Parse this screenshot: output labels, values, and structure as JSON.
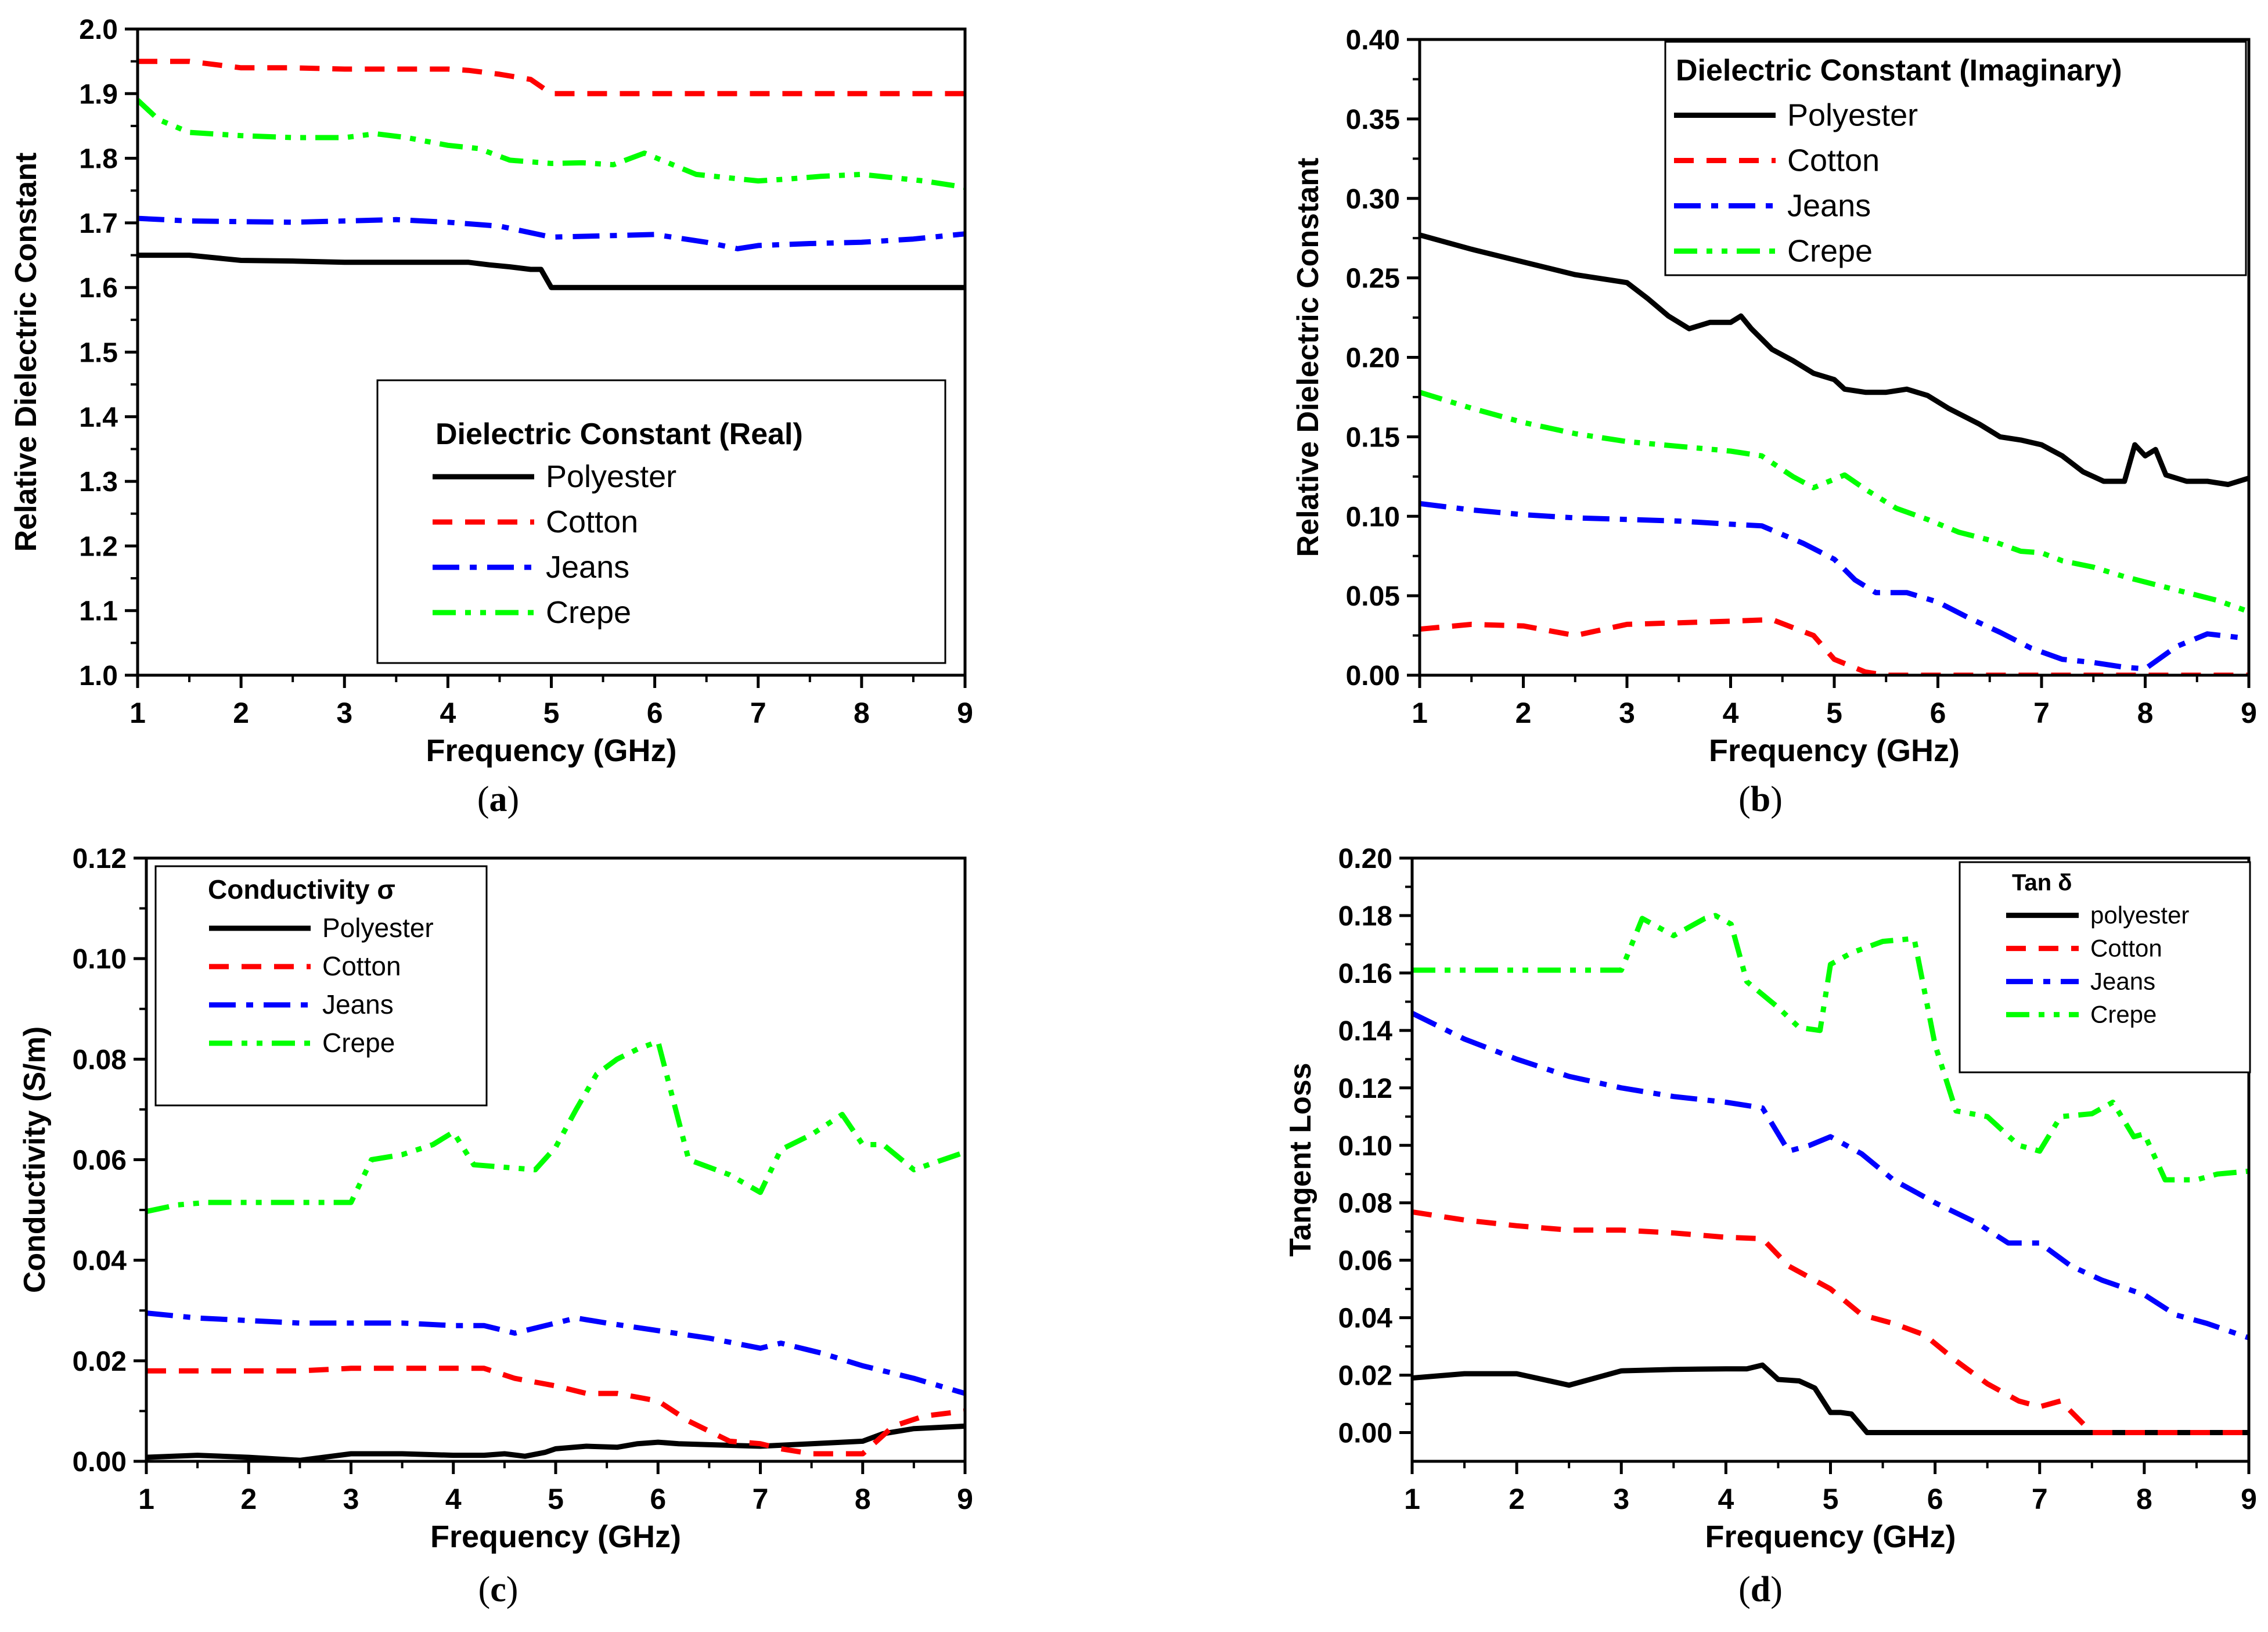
{
  "figure": {
    "captions": [
      "(a)",
      "(b)",
      "(c)",
      "(d)"
    ]
  },
  "chart_data": [
    {
      "type": "line",
      "panel": "a",
      "caption_label": "a",
      "title": "",
      "xlabel": "Frequency (GHz)",
      "ylabel": "Relative Dielectric Constant",
      "xlim": [
        1,
        9
      ],
      "ylim": [
        1.0,
        2.0
      ],
      "xticks": [
        1,
        2,
        3,
        4,
        5,
        6,
        7,
        8,
        9
      ],
      "yticks": [
        1.0,
        1.1,
        1.2,
        1.3,
        1.4,
        1.5,
        1.6,
        1.7,
        1.8,
        1.9,
        2.0
      ],
      "ytick_labels": [
        "1.0",
        "1.1",
        "1.2",
        "1.3",
        "1.4",
        "1.5",
        "1.6",
        "1.7",
        "1.8",
        "1.9",
        "2.0"
      ],
      "legend": {
        "title": "Dielectric Constant (Real)",
        "placement": "lower-right"
      },
      "series": [
        {
          "name": "Polyester",
          "color": "#000000",
          "style": "solid",
          "x": [
            1,
            1.5,
            2,
            2.5,
            3,
            3.5,
            4,
            4.2,
            4.4,
            4.6,
            4.8,
            4.9,
            5.0,
            6,
            7,
            8,
            9
          ],
          "y": [
            1.65,
            1.65,
            1.642,
            1.641,
            1.639,
            1.639,
            1.639,
            1.639,
            1.635,
            1.632,
            1.628,
            1.628,
            1.6,
            1.6,
            1.6,
            1.6,
            1.6
          ]
        },
        {
          "name": "Cotton",
          "color": "#ff0000",
          "style": "dashed",
          "x": [
            1,
            1.5,
            2,
            2.5,
            3,
            3.5,
            4,
            4.2,
            4.5,
            4.8,
            5.0,
            5.5,
            6,
            7,
            8,
            9
          ],
          "y": [
            1.95,
            1.95,
            1.94,
            1.94,
            1.938,
            1.938,
            1.938,
            1.936,
            1.93,
            1.922,
            1.9,
            1.9,
            1.9,
            1.9,
            1.9,
            1.9
          ]
        },
        {
          "name": "Jeans",
          "color": "#0000ff",
          "style": "dashdot",
          "x": [
            1,
            1.5,
            2,
            2.5,
            3,
            3.5,
            4,
            4.5,
            5,
            5.5,
            6,
            6.5,
            6.8,
            7,
            7.5,
            8,
            8.5,
            9
          ],
          "y": [
            1.707,
            1.703,
            1.702,
            1.701,
            1.703,
            1.705,
            1.701,
            1.695,
            1.678,
            1.68,
            1.682,
            1.67,
            1.66,
            1.665,
            1.668,
            1.67,
            1.675,
            1.683
          ]
        },
        {
          "name": "Crepe",
          "color": "#00ff00",
          "style": "dashdotdot",
          "x": [
            1,
            1.2,
            1.5,
            2,
            2.5,
            3,
            3.3,
            3.6,
            4,
            4.3,
            4.6,
            5.0,
            5.3,
            5.6,
            5.9,
            6.1,
            6.4,
            6.7,
            7.0,
            7.3,
            7.6,
            8.0,
            8.3,
            8.6,
            9
          ],
          "y": [
            1.89,
            1.86,
            1.84,
            1.835,
            1.832,
            1.832,
            1.838,
            1.832,
            1.82,
            1.815,
            1.797,
            1.792,
            1.793,
            1.79,
            1.808,
            1.795,
            1.775,
            1.77,
            1.765,
            1.768,
            1.772,
            1.775,
            1.77,
            1.765,
            1.755
          ]
        }
      ]
    },
    {
      "type": "line",
      "panel": "b",
      "caption_label": "b",
      "title": "",
      "xlabel": "Frequency (GHz)",
      "ylabel": "Relative Dielectric Constant",
      "xlim": [
        1,
        9
      ],
      "ylim": [
        0,
        0.4
      ],
      "xticks": [
        1,
        2,
        3,
        4,
        5,
        6,
        7,
        8,
        9
      ],
      "yticks": [
        0,
        0.05,
        0.1,
        0.15,
        0.2,
        0.25,
        0.3,
        0.35,
        0.4
      ],
      "ytick_labels": [
        "0.00",
        "0.05",
        "0.10",
        "0.15",
        "0.20",
        "0.25",
        "0.30",
        "0.35",
        "0.40"
      ],
      "legend": {
        "title": "Dielectric Constant (Imaginary)",
        "placement": "top-right"
      },
      "series": [
        {
          "name": "Polyester",
          "color": "#000000",
          "style": "solid",
          "x": [
            1,
            1.5,
            2,
            2.5,
            3,
            3.2,
            3.4,
            3.6,
            3.8,
            4.0,
            4.1,
            4.2,
            4.4,
            4.6,
            4.8,
            5.0,
            5.1,
            5.3,
            5.5,
            5.7,
            5.9,
            6.1,
            6.4,
            6.6,
            6.8,
            7.0,
            7.2,
            7.4,
            7.6,
            7.8,
            7.9,
            8.0,
            8.1,
            8.2,
            8.4,
            8.6,
            8.8,
            9.0
          ],
          "y": [
            0.277,
            0.268,
            0.26,
            0.252,
            0.247,
            0.237,
            0.226,
            0.218,
            0.222,
            0.222,
            0.226,
            0.218,
            0.205,
            0.198,
            0.19,
            0.186,
            0.18,
            0.178,
            0.178,
            0.18,
            0.176,
            0.168,
            0.158,
            0.15,
            0.148,
            0.145,
            0.138,
            0.128,
            0.122,
            0.122,
            0.145,
            0.138,
            0.142,
            0.126,
            0.122,
            0.122,
            0.12,
            0.124
          ]
        },
        {
          "name": "Cotton",
          "color": "#ff0000",
          "style": "dashed",
          "x": [
            1,
            1.5,
            2,
            2.5,
            3,
            3.5,
            4,
            4.4,
            4.8,
            5.0,
            5.3,
            5.5,
            6,
            7,
            8,
            9
          ],
          "y": [
            0.029,
            0.032,
            0.031,
            0.025,
            0.032,
            0.033,
            0.034,
            0.035,
            0.025,
            0.01,
            0.002,
            0,
            0,
            0,
            0,
            0
          ]
        },
        {
          "name": "Jeans",
          "color": "#0000ff",
          "style": "dashdot",
          "x": [
            1,
            1.5,
            2,
            2.5,
            3,
            3.5,
            4,
            4.3,
            4.7,
            5.0,
            5.2,
            5.4,
            5.7,
            6.0,
            6.3,
            6.6,
            6.9,
            7.2,
            7.5,
            7.8,
            8.0,
            8.3,
            8.6,
            9.0
          ],
          "y": [
            0.108,
            0.104,
            0.101,
            0.099,
            0.098,
            0.097,
            0.095,
            0.094,
            0.083,
            0.073,
            0.06,
            0.052,
            0.052,
            0.046,
            0.036,
            0.027,
            0.017,
            0.01,
            0.008,
            0.005,
            0.004,
            0.018,
            0.026,
            0.023
          ]
        },
        {
          "name": "Crepe",
          "color": "#00ff00",
          "style": "dashdotdot",
          "x": [
            1,
            1.5,
            2,
            2.5,
            3,
            3.5,
            4,
            4.3,
            4.6,
            4.8,
            5.1,
            5.3,
            5.6,
            5.9,
            6.2,
            6.5,
            6.8,
            7.0,
            7.2,
            7.5,
            7.8,
            8.1,
            8.4,
            8.7,
            9.0
          ],
          "y": [
            0.178,
            0.168,
            0.159,
            0.152,
            0.147,
            0.144,
            0.141,
            0.138,
            0.125,
            0.118,
            0.126,
            0.117,
            0.105,
            0.098,
            0.09,
            0.085,
            0.078,
            0.077,
            0.072,
            0.068,
            0.062,
            0.057,
            0.052,
            0.047,
            0.04
          ]
        }
      ]
    },
    {
      "type": "line",
      "panel": "c",
      "caption_label": "c",
      "title": "",
      "xlabel": "Frequency (GHz)",
      "ylabel": "Conductivity (S/m)",
      "xlim": [
        1,
        9
      ],
      "ylim": [
        0,
        0.12
      ],
      "xticks": [
        1,
        2,
        3,
        4,
        5,
        6,
        7,
        8,
        9
      ],
      "yticks": [
        0,
        0.02,
        0.04,
        0.06,
        0.08,
        0.1,
        0.12
      ],
      "ytick_labels": [
        "0.00",
        "0.02",
        "0.04",
        "0.06",
        "0.08",
        "0.10",
        "0.12"
      ],
      "legend": {
        "title": "Conductivity σ",
        "placement": "top-left"
      },
      "series": [
        {
          "name": "Polyester",
          "color": "#000000",
          "style": "solid",
          "x": [
            1,
            1.5,
            2,
            2.5,
            3,
            3.5,
            4,
            4.3,
            4.5,
            4.7,
            4.9,
            5.0,
            5.3,
            5.6,
            5.8,
            6.0,
            6.2,
            6.5,
            7.0,
            7.5,
            8.0,
            8.2,
            8.5,
            9.0
          ],
          "y": [
            0.0008,
            0.0012,
            0.0008,
            0.0002,
            0.0015,
            0.0015,
            0.0012,
            0.0012,
            0.0015,
            0.001,
            0.0018,
            0.0025,
            0.003,
            0.0028,
            0.0035,
            0.0038,
            0.0035,
            0.0033,
            0.003,
            0.0035,
            0.004,
            0.0055,
            0.0065,
            0.007
          ]
        },
        {
          "name": "Cotton",
          "color": "#ff0000",
          "style": "dashed",
          "x": [
            1,
            1.5,
            2,
            2.5,
            3,
            3.5,
            4,
            4.3,
            4.6,
            5.0,
            5.3,
            5.6,
            6.0,
            6.3,
            6.7,
            7.0,
            7.2,
            7.5,
            8.0,
            8.3,
            8.6,
            9.0
          ],
          "y": [
            0.018,
            0.018,
            0.018,
            0.018,
            0.0185,
            0.0185,
            0.0185,
            0.0185,
            0.0165,
            0.015,
            0.0135,
            0.0135,
            0.012,
            0.008,
            0.004,
            0.0035,
            0.0025,
            0.0015,
            0.0015,
            0.007,
            0.009,
            0.01
          ]
        },
        {
          "name": "Jeans",
          "color": "#0000ff",
          "style": "dashdot",
          "x": [
            1,
            1.5,
            2,
            2.5,
            3,
            3.5,
            4,
            4.3,
            4.6,
            5.0,
            5.2,
            5.5,
            6.0,
            6.5,
            7.0,
            7.2,
            7.6,
            8.0,
            8.5,
            9.0
          ],
          "y": [
            0.0295,
            0.0285,
            0.028,
            0.0275,
            0.0275,
            0.0275,
            0.027,
            0.027,
            0.0255,
            0.0275,
            0.0285,
            0.0275,
            0.026,
            0.0245,
            0.0225,
            0.0235,
            0.0215,
            0.019,
            0.0165,
            0.0135
          ]
        },
        {
          "name": "Crepe",
          "color": "#00ff00",
          "style": "dashdotdot",
          "x": [
            1,
            1.3,
            1.6,
            2,
            2.5,
            3.0,
            3.2,
            3.5,
            3.8,
            4.0,
            4.2,
            4.5,
            4.8,
            5.0,
            5.2,
            5.4,
            5.6,
            5.8,
            6.0,
            6.3,
            6.7,
            7.0,
            7.2,
            7.5,
            7.8,
            8.0,
            8.2,
            8.5,
            9.0
          ],
          "y": [
            0.0497,
            0.051,
            0.0515,
            0.0515,
            0.0515,
            0.0515,
            0.06,
            0.061,
            0.063,
            0.0655,
            0.059,
            0.0585,
            0.058,
            0.0625,
            0.07,
            0.077,
            0.08,
            0.082,
            0.0835,
            0.06,
            0.057,
            0.0535,
            0.062,
            0.065,
            0.069,
            0.063,
            0.063,
            0.058,
            0.0615
          ]
        }
      ]
    },
    {
      "type": "line",
      "panel": "d",
      "caption_label": "d",
      "title": "",
      "xlabel": "Frequency (GHz)",
      "ylabel": "Tangent Loss",
      "xlim": [
        1,
        9
      ],
      "ylim": [
        -0.01,
        0.2
      ],
      "xticks": [
        1,
        2,
        3,
        4,
        5,
        6,
        7,
        8,
        9
      ],
      "yticks": [
        0,
        0.02,
        0.04,
        0.06,
        0.08,
        0.1,
        0.12,
        0.14,
        0.16,
        0.18,
        0.2
      ],
      "ytick_labels": [
        "0.00",
        "0.02",
        "0.04",
        "0.06",
        "0.08",
        "0.10",
        "0.12",
        "0.14",
        "0.16",
        "0.18",
        "0.20"
      ],
      "legend": {
        "title": "Tan δ",
        "placement": "top-right"
      },
      "series": [
        {
          "name": "polyester",
          "color": "#000000",
          "style": "solid",
          "x": [
            1,
            1.5,
            2,
            2.5,
            3,
            3.5,
            4,
            4.2,
            4.35,
            4.5,
            4.7,
            4.85,
            5.0,
            5.1,
            5.2,
            5.35,
            6,
            7,
            8,
            9
          ],
          "y": [
            0.019,
            0.0205,
            0.0205,
            0.0165,
            0.0215,
            0.022,
            0.0222,
            0.0222,
            0.0235,
            0.0185,
            0.018,
            0.0155,
            0.007,
            0.007,
            0.0065,
            0.0,
            0.0,
            0.0,
            0.0,
            0.0
          ]
        },
        {
          "name": "Cotton",
          "color": "#ff0000",
          "style": "dashed",
          "x": [
            1,
            1.5,
            2,
            2.5,
            3,
            3.5,
            4,
            4.35,
            4.6,
            5.0,
            5.3,
            5.6,
            5.9,
            6.2,
            6.5,
            6.8,
            7.0,
            7.2,
            7.5,
            8,
            9
          ],
          "y": [
            0.0768,
            0.074,
            0.072,
            0.0705,
            0.0705,
            0.0695,
            0.068,
            0.0675,
            0.058,
            0.05,
            0.041,
            0.038,
            0.034,
            0.025,
            0.017,
            0.011,
            0.009,
            0.011,
            0.0,
            0.0,
            0.0
          ]
        },
        {
          "name": "Jeans",
          "color": "#0000ff",
          "style": "dashdot",
          "x": [
            1,
            1.5,
            2,
            2.5,
            3,
            3.5,
            4,
            4.35,
            4.6,
            4.8,
            5.0,
            5.3,
            5.6,
            6.0,
            6.4,
            6.7,
            7.0,
            7.3,
            7.6,
            8.0,
            8.3,
            8.6,
            9.0
          ],
          "y": [
            0.146,
            0.137,
            0.13,
            0.124,
            0.12,
            0.117,
            0.115,
            0.113,
            0.098,
            0.1,
            0.103,
            0.097,
            0.088,
            0.08,
            0.073,
            0.066,
            0.066,
            0.058,
            0.053,
            0.048,
            0.041,
            0.038,
            0.033
          ]
        },
        {
          "name": "Crepe",
          "color": "#00ff00",
          "style": "dashdotdot",
          "x": [
            1,
            1.5,
            2,
            2.5,
            3.0,
            3.2,
            3.5,
            3.8,
            3.9,
            4.05,
            4.2,
            4.5,
            4.7,
            4.9,
            5.0,
            5.2,
            5.5,
            5.8,
            6.0,
            6.2,
            6.5,
            6.8,
            7.0,
            7.2,
            7.5,
            7.7,
            7.9,
            8.0,
            8.2,
            8.5,
            8.7,
            9.0
          ],
          "y": [
            0.161,
            0.161,
            0.161,
            0.161,
            0.161,
            0.179,
            0.173,
            0.179,
            0.18,
            0.177,
            0.157,
            0.148,
            0.141,
            0.14,
            0.163,
            0.167,
            0.171,
            0.172,
            0.135,
            0.112,
            0.11,
            0.1,
            0.098,
            0.11,
            0.111,
            0.115,
            0.103,
            0.104,
            0.088,
            0.088,
            0.09,
            0.091
          ]
        }
      ]
    }
  ]
}
